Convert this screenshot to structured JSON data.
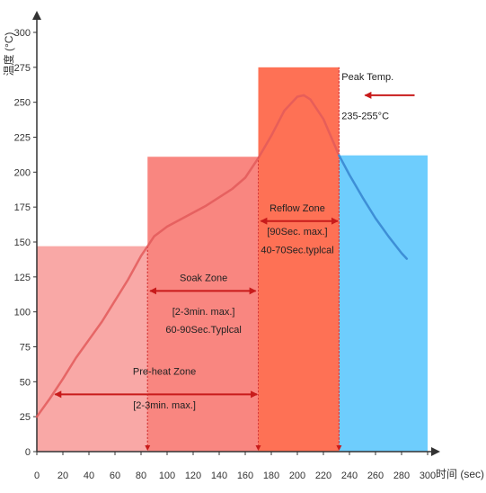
{
  "chart_data": {
    "type": "area",
    "title": "",
    "xlabel": "时间 (sec)",
    "ylabel": "温度 (°C)",
    "xlim": [
      0,
      300
    ],
    "ylim": [
      0,
      300
    ],
    "x_ticks": [
      0,
      20,
      40,
      60,
      80,
      100,
      120,
      140,
      160,
      180,
      200,
      220,
      240,
      260,
      280,
      300
    ],
    "y_ticks": [
      0,
      25,
      50,
      75,
      100,
      125,
      150,
      175,
      200,
      225,
      250,
      275,
      300
    ],
    "zones": [
      {
        "x0": 0,
        "x1": 85,
        "y1": 147,
        "color": "#f9a8a6"
      },
      {
        "x0": 85,
        "x1": 170,
        "y1": 211,
        "color": "#f98680"
      },
      {
        "x0": 170,
        "x1": 232,
        "y1": 275,
        "color": "#fe7155"
      },
      {
        "x0": 232,
        "x1": 300,
        "y1": 212,
        "color": "#6ecdfd"
      }
    ],
    "series": [
      {
        "color_heat": "#e35b5b",
        "color_cool": "#3e8fd6",
        "split_x": 232,
        "x": [
          0,
          10,
          20,
          30,
          40,
          50,
          60,
          70,
          80,
          85,
          90,
          100,
          110,
          120,
          130,
          140,
          150,
          160,
          170,
          180,
          190,
          200,
          205,
          210,
          220,
          232,
          240,
          250,
          260,
          270,
          280,
          284
        ],
        "y": [
          25,
          38,
          52,
          67,
          80,
          93,
          108,
          123,
          140,
          147,
          154,
          161,
          166,
          171,
          176,
          182,
          188,
          196,
          210,
          226,
          244,
          254,
          255,
          252,
          238,
          212,
          198,
          182,
          167,
          154,
          142,
          138
        ]
      }
    ],
    "vlines": [
      85,
      170,
      232
    ],
    "arrows": [
      {
        "x0": 14,
        "x1": 169,
        "y": 41
      },
      {
        "x0": 87,
        "x1": 168,
        "y": 115
      },
      {
        "x0": 172,
        "x1": 231,
        "y": 165
      },
      {
        "x0": 290,
        "x1": 252,
        "y": 255
      }
    ],
    "annotations": [
      {
        "text": "Peak Temp.",
        "x": 234,
        "y": 266
      },
      {
        "text": "235-255°C",
        "x": 234,
        "y": 238
      },
      {
        "text": "Reflow Zone",
        "x": 200,
        "y": 172
      },
      {
        "text": "[90Sec. max.]",
        "x": 200,
        "y": 155
      },
      {
        "text": "40-70Sec.typlcal",
        "x": 200,
        "y": 142
      },
      {
        "text": "Soak Zone",
        "x": 128,
        "y": 122
      },
      {
        "text": "[2-3min. max.]",
        "x": 128,
        "y": 98
      },
      {
        "text": "60-90Sec.Typlcal",
        "x": 128,
        "y": 85
      },
      {
        "text": "Pre-heat Zone",
        "x": 98,
        "y": 55
      },
      {
        "text": "[2-3min. max.]",
        "x": 98,
        "y": 31
      }
    ]
  }
}
